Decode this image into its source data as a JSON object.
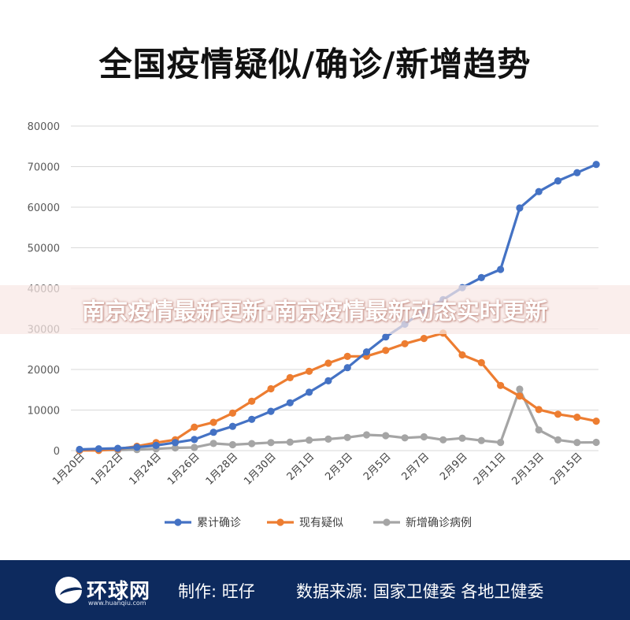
{
  "colors": {
    "cumulative": "#4472c4",
    "suspected": "#ed7d31",
    "new_confirmed": "#a5a5a5",
    "gridline": "#d9d9d9",
    "footer_bg": "#0d2a5e"
  },
  "overlay_text": "南京疫情最新更新:南京疫情最新动态实时更新",
  "footer": {
    "logo_text": "环球网",
    "logo_url": "www.huanqiu.com",
    "author": "制作: 旺仔",
    "source": "数据来源: 国家卫健委 各地卫健委"
  },
  "chart_data": {
    "type": "line",
    "title": "全国疫情疑似/确诊/新增趋势",
    "xlabel": "",
    "ylabel": "",
    "ylim": [
      0,
      80000
    ],
    "yticks": [
      0,
      10000,
      20000,
      30000,
      40000,
      50000,
      60000,
      70000,
      80000
    ],
    "grid": true,
    "legend_position": "bottom",
    "categories": [
      "1月20日",
      "1月21日",
      "1月22日",
      "1月23日",
      "1月24日",
      "1月25日",
      "1月26日",
      "1月27日",
      "1月28日",
      "1月29日",
      "1月30日",
      "1月31日",
      "2月1日",
      "2月2日",
      "2月3日",
      "2月4日",
      "2月5日",
      "2月6日",
      "2月7日",
      "2月8日",
      "2月9日",
      "2月10日",
      "2月11日",
      "2月12日",
      "2月13日",
      "2月14日",
      "2月15日",
      "2月16日"
    ],
    "tick_labels": [
      "1月20日",
      "1月22日",
      "1月24日",
      "1月26日",
      "1月28日",
      "1月30日",
      "2月1日",
      "2月3日",
      "2月5日",
      "2月7日",
      "2月9日",
      "2月11日",
      "2月13日",
      "2月15日"
    ],
    "series": [
      {
        "name": "累计确诊",
        "color": "#4472c4",
        "values": [
          291,
          440,
          571,
          830,
          1287,
          1975,
          2744,
          4515,
          5974,
          7711,
          9692,
          11791,
          14380,
          17205,
          20438,
          24324,
          28018,
          31161,
          34546,
          37198,
          40171,
          42638,
          44653,
          59804,
          63851,
          66492,
          68500,
          70548
        ]
      },
      {
        "name": "现有疑似",
        "color": "#ed7d31",
        "values": [
          54,
          37,
          393,
          1072,
          1965,
          2684,
          5794,
          6973,
          9239,
          12167,
          15238,
          17988,
          19544,
          21558,
          23214,
          23260,
          24702,
          26359,
          27657,
          28942,
          23589,
          21675,
          16067,
          13435,
          10109,
          8969,
          8228,
          7264
        ]
      },
      {
        "name": "新增确诊病例",
        "color": "#a5a5a5",
        "values": [
          77,
          149,
          131,
          259,
          444,
          688,
          769,
          1771,
          1459,
          1737,
          1982,
          2102,
          2590,
          2829,
          3235,
          3887,
          3694,
          3143,
          3399,
          2656,
          3062,
          2478,
          2015,
          15152,
          5090,
          2641,
          2009,
          2048
        ]
      }
    ]
  }
}
